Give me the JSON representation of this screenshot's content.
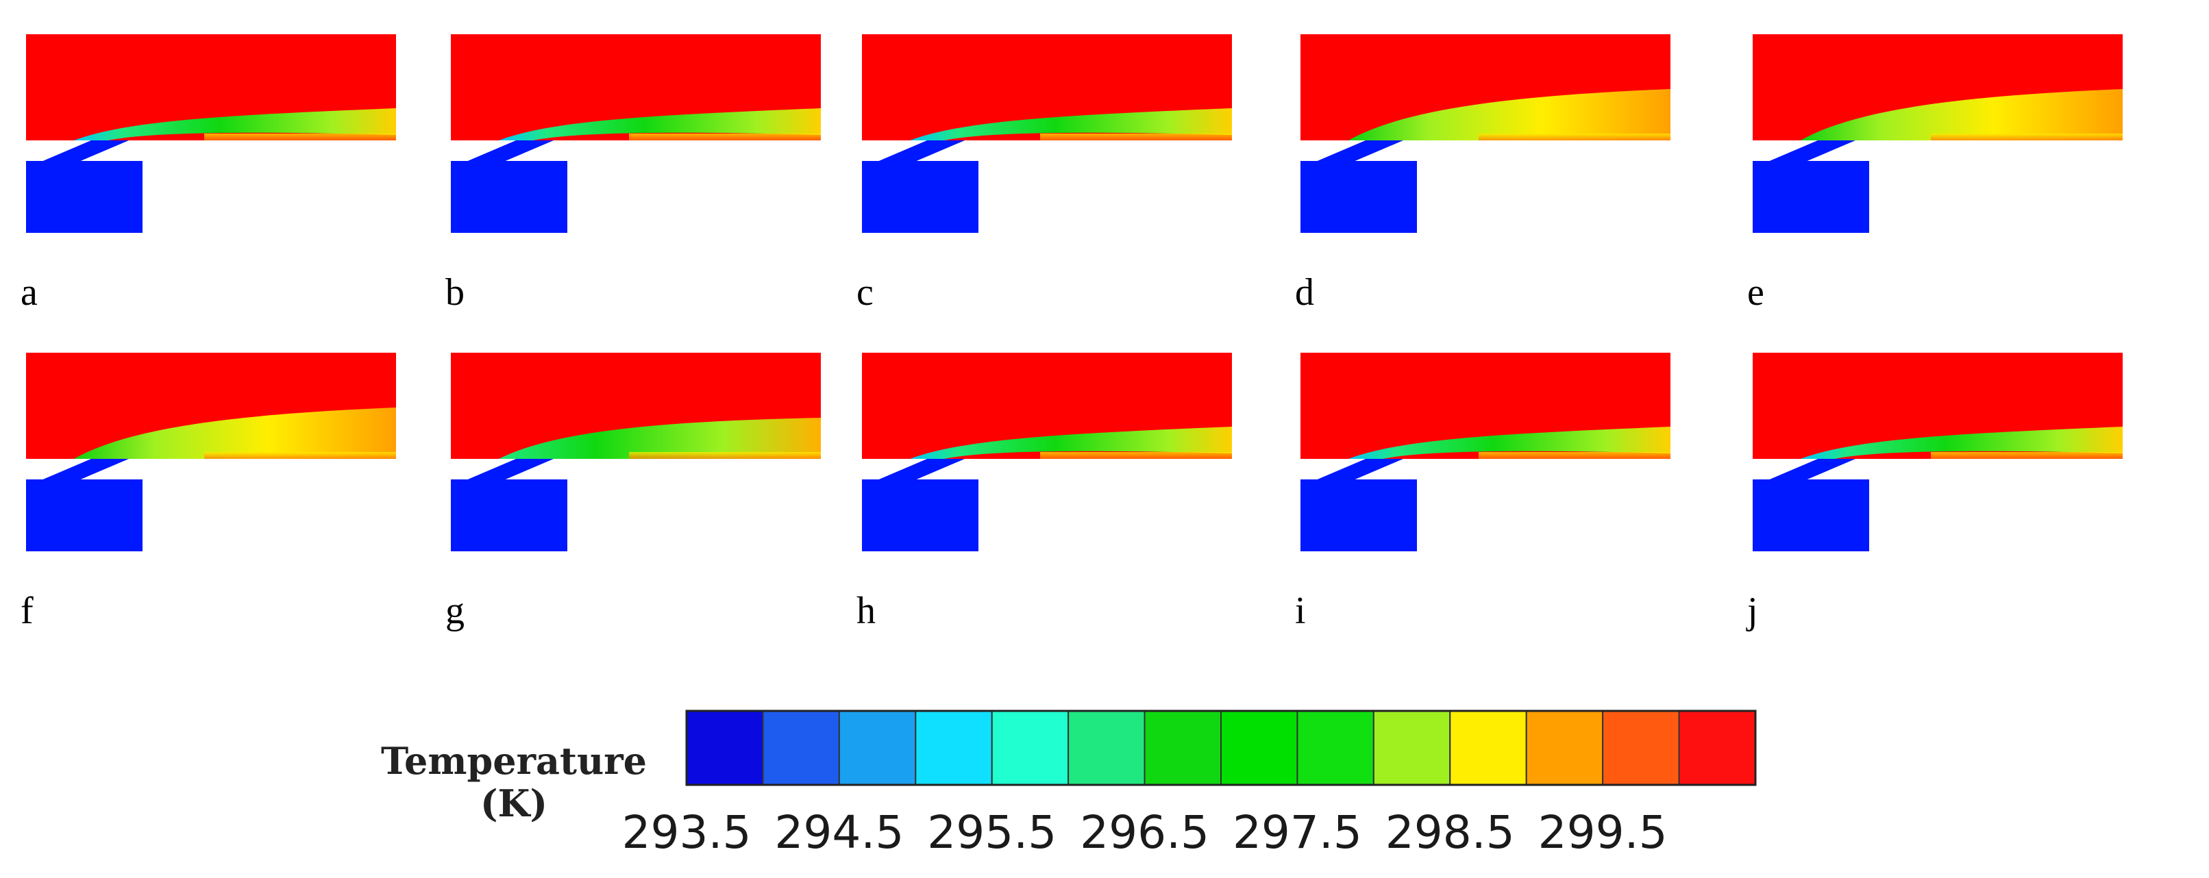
{
  "figure": {
    "panels": [
      {
        "label": "a",
        "plume": "thin"
      },
      {
        "label": "b",
        "plume": "thin"
      },
      {
        "label": "c",
        "plume": "thin"
      },
      {
        "label": "d",
        "plume": "diffuse"
      },
      {
        "label": "e",
        "plume": "diffuse"
      },
      {
        "label": "f",
        "plume": "diffuse"
      },
      {
        "label": "g",
        "plume": "medium"
      },
      {
        "label": "h",
        "plume": "thin"
      },
      {
        "label": "i",
        "plume": "thin"
      },
      {
        "label": "j",
        "plume": "thin"
      }
    ],
    "colors": {
      "hot": "#ff0000",
      "cold": "#0018ff"
    }
  },
  "legend": {
    "title_line1": "Temperature",
    "title_line2": "(K)",
    "colors": [
      "#0a0ae0",
      "#1e5cf0",
      "#1aa0f0",
      "#10e0ff",
      "#20ffd0",
      "#20e880",
      "#10d810",
      "#00e000",
      "#10e010",
      "#a0f020",
      "#ffee00",
      "#ffa000",
      "#ff5a10",
      "#ff1010"
    ],
    "ticks": [
      "293.5",
      "294.5",
      "295.5",
      "296.5",
      "297.5",
      "298.5",
      "299.5"
    ]
  }
}
